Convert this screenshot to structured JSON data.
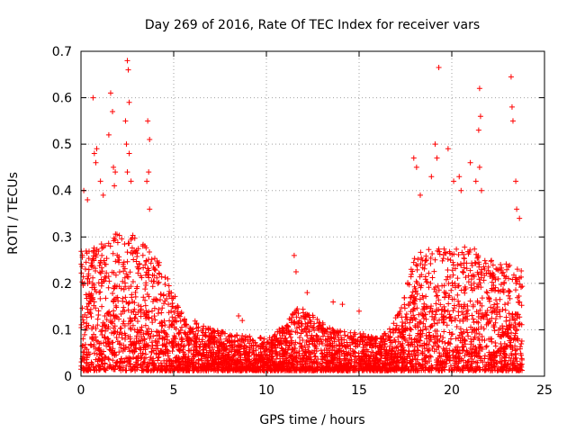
{
  "chart_data": {
    "type": "scatter",
    "title": "Day 269 of 2016, Rate Of TEC Index for receiver vars",
    "xlabel": "GPS time / hours",
    "ylabel": "ROTI / TECUs",
    "xlim": [
      0,
      25
    ],
    "ylim": [
      0,
      0.7
    ],
    "xticks": [
      0,
      5,
      10,
      15,
      20,
      25
    ],
    "yticks": [
      0,
      0.1,
      0.2,
      0.3,
      0.4,
      0.5,
      0.6,
      0.7
    ],
    "xtick_labels": [
      "0",
      "5",
      "10",
      "15",
      "20",
      "25"
    ],
    "ytick_labels": [
      "0",
      "0.1",
      "0.2",
      "0.3",
      "0.4",
      "0.5",
      "0.6",
      "0.7"
    ],
    "grid": true,
    "marker": "+",
    "point_color": "#ff0000",
    "outliers": [
      [
        0.15,
        0.4
      ],
      [
        0.35,
        0.38
      ],
      [
        0.65,
        0.6
      ],
      [
        0.72,
        0.48
      ],
      [
        0.8,
        0.46
      ],
      [
        0.85,
        0.49
      ],
      [
        1.05,
        0.42
      ],
      [
        1.2,
        0.39
      ],
      [
        1.5,
        0.52
      ],
      [
        1.6,
        0.61
      ],
      [
        1.7,
        0.57
      ],
      [
        1.75,
        0.45
      ],
      [
        1.85,
        0.44
      ],
      [
        1.8,
        0.41
      ],
      [
        2.4,
        0.55
      ],
      [
        2.5,
        0.68
      ],
      [
        2.55,
        0.66
      ],
      [
        2.6,
        0.59
      ],
      [
        2.45,
        0.5
      ],
      [
        2.6,
        0.48
      ],
      [
        2.5,
        0.44
      ],
      [
        2.7,
        0.42
      ],
      [
        3.6,
        0.55
      ],
      [
        3.7,
        0.51
      ],
      [
        3.65,
        0.44
      ],
      [
        3.55,
        0.42
      ],
      [
        3.7,
        0.36
      ],
      [
        11.5,
        0.26
      ],
      [
        11.6,
        0.225
      ],
      [
        8.5,
        0.13
      ],
      [
        8.7,
        0.12
      ],
      [
        12.2,
        0.18
      ],
      [
        13.6,
        0.16
      ],
      [
        14.1,
        0.155
      ],
      [
        15.0,
        0.14
      ],
      [
        17.95,
        0.47
      ],
      [
        18.1,
        0.45
      ],
      [
        18.3,
        0.39
      ],
      [
        18.9,
        0.43
      ],
      [
        19.1,
        0.5
      ],
      [
        19.3,
        0.665
      ],
      [
        19.2,
        0.47
      ],
      [
        19.8,
        0.49
      ],
      [
        20.1,
        0.42
      ],
      [
        20.4,
        0.43
      ],
      [
        20.5,
        0.4
      ],
      [
        21.0,
        0.46
      ],
      [
        21.5,
        0.62
      ],
      [
        21.55,
        0.56
      ],
      [
        21.45,
        0.53
      ],
      [
        21.5,
        0.45
      ],
      [
        21.3,
        0.42
      ],
      [
        21.6,
        0.4
      ],
      [
        23.2,
        0.645
      ],
      [
        23.25,
        0.58
      ],
      [
        23.3,
        0.55
      ],
      [
        23.45,
        0.42
      ],
      [
        23.5,
        0.36
      ],
      [
        23.65,
        0.34
      ]
    ]
  }
}
